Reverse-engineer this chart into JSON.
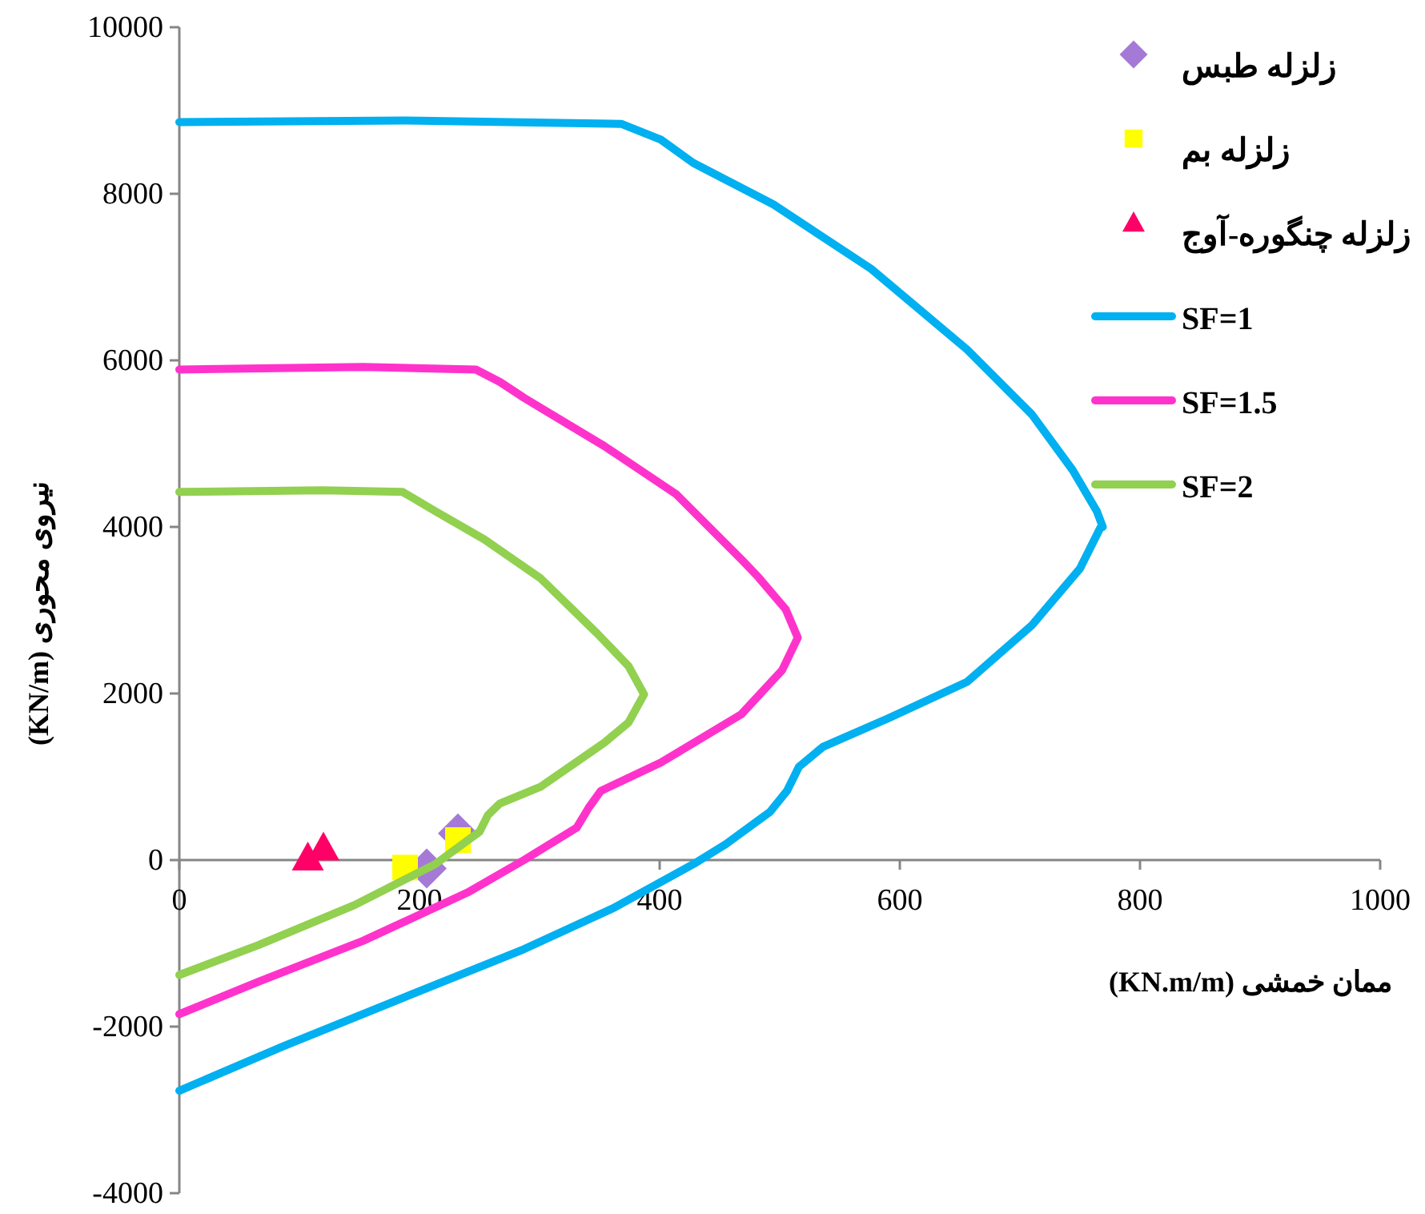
{
  "chart_data": {
    "type": "line",
    "xlabel": "ممان خمشی (KN.m/m)",
    "ylabel": "نیروی محوری (KN/m)",
    "xlim": [
      0,
      1000
    ],
    "ylim": [
      -4000,
      10000
    ],
    "xticks": [
      0,
      200,
      400,
      600,
      800,
      1000
    ],
    "yticks": [
      -4000,
      -2000,
      0,
      2000,
      4000,
      6000,
      8000,
      10000
    ],
    "grid": false,
    "legend": "top right",
    "series": [
      {
        "name": "زلزله طبس",
        "type": "scatter",
        "marker": "diamond",
        "color": "#a47ad6",
        "x": [
          206,
          232
        ],
        "values": [
          -100,
          320
        ]
      },
      {
        "name": "زلزله بم",
        "type": "scatter",
        "marker": "square",
        "color": "#ffff00",
        "x": [
          188,
          232
        ],
        "values": [
          -90,
          240
        ]
      },
      {
        "name": "زلزله چنگوره-آوج",
        "type": "scatter",
        "marker": "triangle",
        "color": "#ff0066",
        "x": [
          107,
          120
        ],
        "values": [
          30,
          150
        ]
      },
      {
        "name": "SF=1",
        "color": "#00b0f0",
        "x": [
          0,
          187,
          368,
          401,
          428,
          495,
          576,
          656,
          710,
          744,
          764,
          769,
          767,
          750,
          710,
          656,
          590,
          536,
          516,
          506,
          492,
          455,
          428,
          361,
          287,
          187,
          86,
          0
        ],
        "values": [
          8860,
          8880,
          8840,
          8650,
          8370,
          7870,
          7100,
          6130,
          5350,
          4680,
          4190,
          4000,
          3990,
          3500,
          2820,
          2140,
          1700,
          1360,
          1120,
          830,
          580,
          190,
          -50,
          -580,
          -1070,
          -1650,
          -2240,
          -2770
        ]
      },
      {
        "name": "SF=1.5",
        "color": "#ff33cc",
        "x": [
          0,
          153,
          247,
          267,
          287,
          354,
          414,
          468,
          482,
          505,
          515,
          502,
          468,
          401,
          351,
          341,
          331,
          287,
          240,
          153,
          66,
          0
        ],
        "values": [
          5890,
          5920,
          5890,
          5740,
          5550,
          4970,
          4390,
          3610,
          3400,
          3010,
          2670,
          2280,
          1750,
          1170,
          830,
          630,
          390,
          0,
          -390,
          -970,
          -1460,
          -1850
        ]
      },
      {
        "name": "SF=2",
        "color": "#92d050",
        "x": [
          0,
          119,
          186,
          213,
          254,
          301,
          348,
          374,
          387,
          374,
          354,
          301,
          267,
          257,
          250,
          213,
          146,
          66,
          0
        ],
        "values": [
          4420,
          4440,
          4420,
          4190,
          3850,
          3380,
          2720,
          2330,
          1990,
          1650,
          1410,
          880,
          680,
          540,
          340,
          -50,
          -540,
          -1020,
          -1380
        ]
      }
    ]
  }
}
